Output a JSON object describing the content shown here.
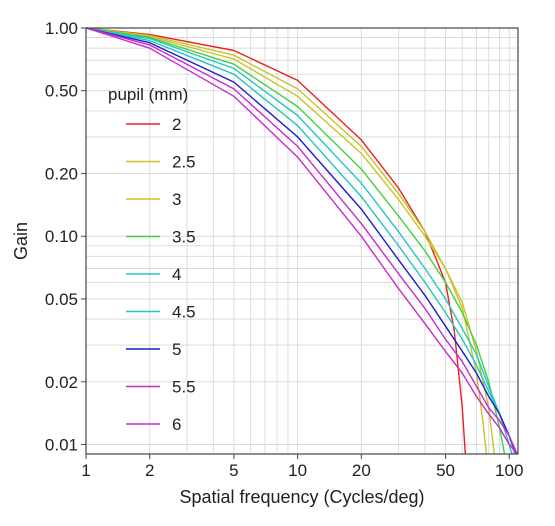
{
  "chart_data": {
    "type": "line",
    "xlabel": "Spatial frequency (Cycles/deg)",
    "ylabel": "Gain",
    "x_scale": "log",
    "y_scale": "log",
    "xlim": [
      1,
      110
    ],
    "ylim": [
      0.009,
      1.0
    ],
    "x_ticks": [
      1,
      2,
      5,
      10,
      20,
      50,
      100
    ],
    "x_tick_labels": [
      "1",
      "2",
      "5",
      "10",
      "20",
      "50",
      "100"
    ],
    "y_ticks": [
      0.01,
      0.02,
      0.05,
      0.1,
      0.2,
      0.5,
      1.0
    ],
    "y_tick_labels": [
      "0.01",
      "0.02",
      "0.05",
      "0.10",
      "0.20",
      "0.50",
      "1.00"
    ],
    "grid": true,
    "legend_title": "pupil (mm)",
    "legend_position": "left-middle",
    "series": [
      {
        "name": "2",
        "color": "#e8231f",
        "x": [
          1,
          2,
          5,
          10,
          20,
          30,
          40,
          50,
          55,
          60,
          62
        ],
        "y": [
          1.0,
          0.93,
          0.78,
          0.56,
          0.29,
          0.17,
          0.105,
          0.06,
          0.035,
          0.015,
          0.009
        ]
      },
      {
        "name": "2.5",
        "color": "#c9c22a",
        "x": [
          1,
          2,
          5,
          10,
          20,
          30,
          40,
          50,
          60,
          70,
          75,
          78
        ],
        "y": [
          1.0,
          0.92,
          0.74,
          0.51,
          0.27,
          0.16,
          0.105,
          0.07,
          0.045,
          0.022,
          0.013,
          0.009
        ]
      },
      {
        "name": "3",
        "color": "#c9c22a",
        "x": [
          1,
          2,
          5,
          10,
          20,
          30,
          40,
          50,
          60,
          70,
          80,
          85
        ],
        "y": [
          1.0,
          0.91,
          0.71,
          0.47,
          0.25,
          0.15,
          0.1,
          0.07,
          0.048,
          0.028,
          0.015,
          0.009
        ]
      },
      {
        "name": "3.5",
        "color": "#3fd23f",
        "x": [
          1,
          2,
          5,
          10,
          20,
          30,
          40,
          50,
          60,
          70,
          80,
          90,
          95
        ],
        "y": [
          1.0,
          0.9,
          0.67,
          0.42,
          0.21,
          0.125,
          0.085,
          0.06,
          0.043,
          0.03,
          0.02,
          0.012,
          0.009
        ]
      },
      {
        "name": "4",
        "color": "#26c6c0",
        "x": [
          1,
          2,
          5,
          10,
          20,
          30,
          40,
          50,
          60,
          70,
          80,
          90,
          100,
          103
        ],
        "y": [
          1.0,
          0.89,
          0.64,
          0.38,
          0.18,
          0.105,
          0.07,
          0.05,
          0.036,
          0.027,
          0.019,
          0.014,
          0.01,
          0.009
        ]
      },
      {
        "name": "4.5",
        "color": "#26c6c0",
        "x": [
          1,
          2,
          5,
          10,
          20,
          30,
          40,
          50,
          60,
          70,
          80,
          90,
          100,
          106
        ],
        "y": [
          1.0,
          0.87,
          0.6,
          0.34,
          0.155,
          0.09,
          0.06,
          0.043,
          0.032,
          0.024,
          0.018,
          0.014,
          0.011,
          0.009
        ]
      },
      {
        "name": "5",
        "color": "#1a1fc8",
        "x": [
          1,
          2,
          5,
          10,
          20,
          30,
          40,
          50,
          60,
          70,
          80,
          90,
          100,
          108
        ],
        "y": [
          1.0,
          0.85,
          0.55,
          0.3,
          0.135,
          0.077,
          0.052,
          0.037,
          0.028,
          0.022,
          0.017,
          0.014,
          0.011,
          0.009
        ]
      },
      {
        "name": "5.5",
        "color": "#c72bc9",
        "x": [
          1,
          2,
          5,
          10,
          20,
          30,
          40,
          50,
          60,
          70,
          80,
          90,
          100,
          109
        ],
        "y": [
          1.0,
          0.83,
          0.51,
          0.27,
          0.115,
          0.066,
          0.045,
          0.032,
          0.025,
          0.019,
          0.015,
          0.013,
          0.011,
          0.009
        ]
      },
      {
        "name": "6",
        "color": "#c72bc9",
        "x": [
          1,
          2,
          5,
          10,
          20,
          30,
          40,
          50,
          60,
          70,
          80,
          90,
          100,
          110
        ],
        "y": [
          1.0,
          0.8,
          0.47,
          0.24,
          0.1,
          0.056,
          0.038,
          0.028,
          0.022,
          0.017,
          0.014,
          0.012,
          0.01,
          0.009
        ]
      }
    ]
  }
}
